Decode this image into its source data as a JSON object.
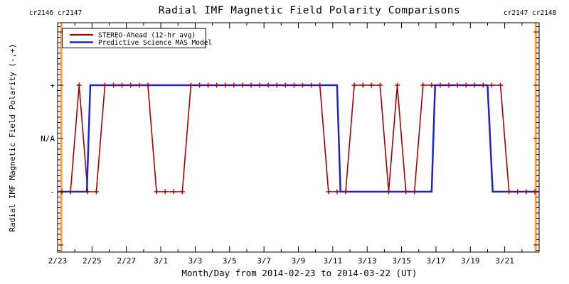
{
  "chart_data": {
    "type": "line",
    "title": "Radial IMF Magnetic Field Polarity Comparisons",
    "xlabel": "Month/Day from 2014-02-23 to 2014-03-22 (UT)",
    "ylabel": "Radial IMF Magnetic Field Polarity (-,+)",
    "grid": false,
    "legend_position": "top-left",
    "x_axis": {
      "start_date": "2014-02-23",
      "end_date": "2014-03-22",
      "span_days": 28,
      "minor_tick_every_days": 1,
      "major_tick_every_days": 2,
      "tick_labels": [
        {
          "label": "2/23",
          "day": 0
        },
        {
          "label": "2/25",
          "day": 2
        },
        {
          "label": "2/27",
          "day": 4
        },
        {
          "label": "3/1",
          "day": 6
        },
        {
          "label": "3/3",
          "day": 8
        },
        {
          "label": "3/5",
          "day": 10
        },
        {
          "label": "3/7",
          "day": 12
        },
        {
          "label": "3/9",
          "day": 14
        },
        {
          "label": "3/11",
          "day": 16
        },
        {
          "label": "3/13",
          "day": 18
        },
        {
          "label": "3/15",
          "day": 20
        },
        {
          "label": "3/17",
          "day": 22
        },
        {
          "label": "3/19",
          "day": 24
        },
        {
          "label": "3/21",
          "day": 26
        }
      ]
    },
    "y_axis": {
      "range": [
        -2.15,
        2.15
      ],
      "minor_tick_step": 0.1,
      "major_tick_step": 1,
      "ticks": [
        {
          "label": "+",
          "value": 1
        },
        {
          "label": "N/A",
          "value": 0
        },
        {
          "label": "-",
          "value": -1
        }
      ]
    },
    "series": [
      {
        "name": "STEREO-Ahead (12-hr avg)",
        "color": "#AA0000",
        "marker": "plus",
        "sampling": "12-hr",
        "start_day": 0.25,
        "step_days": 0.5,
        "values": [
          -1,
          -1,
          1,
          -1,
          -1,
          1,
          1,
          1,
          1,
          1,
          1,
          -1,
          -1,
          -1,
          -1,
          1,
          1,
          1,
          1,
          1,
          1,
          1,
          1,
          1,
          1,
          1,
          1,
          1,
          1,
          1,
          1,
          -1,
          -1,
          -1,
          1,
          1,
          1,
          1,
          -1,
          1,
          -1,
          -1,
          1,
          1,
          1,
          1,
          1,
          1,
          1,
          1,
          1,
          1,
          -1,
          -1,
          -1,
          -1
        ]
      },
      {
        "name": "Predictive Science MAS Model",
        "color": "#2222CC",
        "marker": "none",
        "points_day_polarity": [
          [
            0,
            -1
          ],
          [
            1.7,
            -1
          ],
          [
            1.9,
            1
          ],
          [
            16.25,
            1
          ],
          [
            16.45,
            -1
          ],
          [
            21.75,
            -1
          ],
          [
            21.95,
            1
          ],
          [
            25.0,
            1
          ],
          [
            25.3,
            -1
          ],
          [
            28,
            -1
          ]
        ]
      }
    ],
    "carrington_boundaries": [
      {
        "day": 0.21,
        "label": "cr2146 cr2147"
      },
      {
        "day": 27.8,
        "label": "cr2147 cr2148"
      }
    ],
    "boundary_color": "#FFA03C",
    "axis_color": "#000000"
  }
}
